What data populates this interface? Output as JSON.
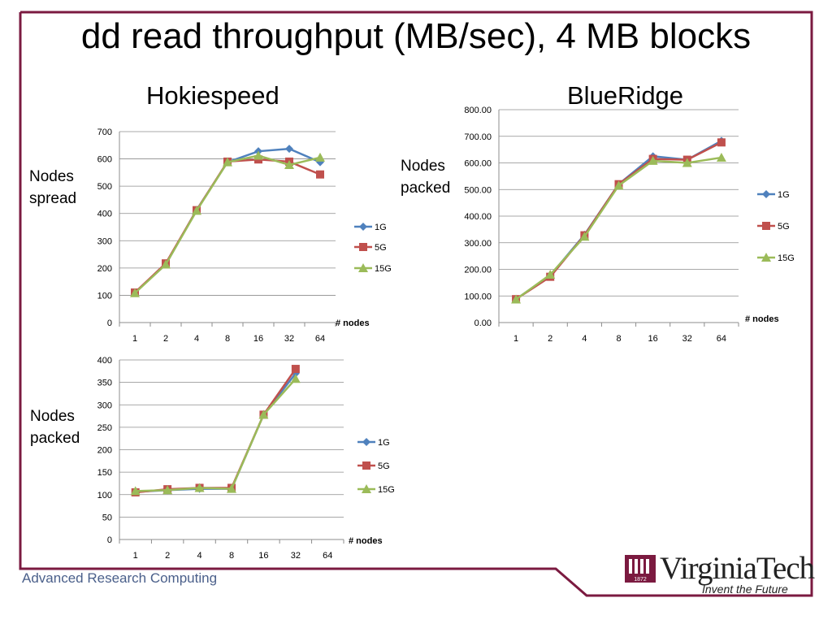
{
  "slide": {
    "title": "dd read throughput (MB/sec), 4 MB blocks",
    "left_heading": "Hokiespeed",
    "right_heading": "BlueRidge",
    "footer": "Advanced Research Computing",
    "logo": {
      "wordmark": "VirginiaTech",
      "tagline": "Invent the Future",
      "year": "1872"
    },
    "colors": {
      "frame": "#7b1a40",
      "series_1G": "#4f81bd",
      "series_5G": "#c0504d",
      "series_15G": "#9bbb59"
    }
  },
  "chart_data": [
    {
      "id": "hokiespeed-spread",
      "type": "line",
      "side_label": [
        "Nodes",
        "spread"
      ],
      "title": "",
      "xlabel": "# nodes",
      "ylabel": "",
      "categories": [
        "1",
        "2",
        "4",
        "8",
        "16",
        "32",
        "64"
      ],
      "ylim": [
        0,
        700
      ],
      "yticks": [
        "0",
        "100",
        "200",
        "300",
        "400",
        "500",
        "600",
        "700"
      ],
      "grid": true,
      "legend": "right",
      "series": [
        {
          "name": "1G",
          "values": [
            110,
            213,
            413,
            588,
            628,
            637,
            588
          ]
        },
        {
          "name": "5G",
          "values": [
            110,
            217,
            412,
            590,
            598,
            590,
            543
          ]
        },
        {
          "name": "15G",
          "values": [
            108,
            213,
            410,
            588,
            612,
            578,
            605
          ]
        }
      ]
    },
    {
      "id": "blueridge-packed",
      "type": "line",
      "side_label": [
        "Nodes",
        "packed"
      ],
      "title": "",
      "xlabel": "# nodes",
      "ylabel": "",
      "categories": [
        "1",
        "2",
        "4",
        "8",
        "16",
        "32",
        "64"
      ],
      "ylim": [
        0,
        800
      ],
      "yticks": [
        "0.00",
        "100.00",
        "200.00",
        "300.00",
        "400.00",
        "500.00",
        "600.00",
        "700.00",
        "800.00"
      ],
      "grid": true,
      "legend": "right",
      "series": [
        {
          "name": "1G",
          "values": [
            88,
            177,
            330,
            520,
            625,
            612,
            683
          ]
        },
        {
          "name": "5G",
          "values": [
            88,
            172,
            328,
            520,
            615,
            612,
            677
          ]
        },
        {
          "name": "15G",
          "values": [
            87,
            180,
            323,
            515,
            608,
            600,
            620
          ]
        }
      ]
    },
    {
      "id": "hokiespeed-packed",
      "type": "line",
      "side_label": [
        "Nodes",
        "packed"
      ],
      "title": "",
      "xlabel": "# nodes",
      "ylabel": "",
      "categories": [
        "1",
        "2",
        "4",
        "8",
        "16",
        "32",
        "64"
      ],
      "ylim": [
        0,
        400
      ],
      "yticks": [
        "0",
        "50",
        "100",
        "150",
        "200",
        "250",
        "300",
        "350",
        "400"
      ],
      "grid": true,
      "legend": "right",
      "series": [
        {
          "name": "1G",
          "values": [
            106,
            110,
            113,
            113,
            278,
            370,
            null
          ]
        },
        {
          "name": "5G",
          "values": [
            105,
            112,
            115,
            115,
            278,
            380,
            null
          ]
        },
        {
          "name": "15G",
          "values": [
            108,
            110,
            115,
            113,
            278,
            358,
            null
          ]
        }
      ]
    }
  ]
}
